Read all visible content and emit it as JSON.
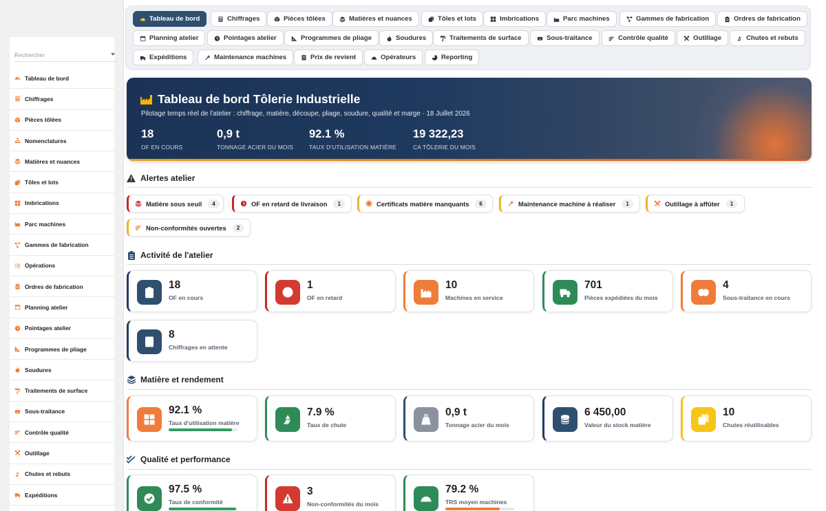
{
  "sidebar": {
    "search_placeholder": "Rechercher",
    "items": [
      {
        "label": "Tableau de bord",
        "icon": "gauge-icon"
      },
      {
        "label": "Chiffrages",
        "icon": "calculator-icon"
      },
      {
        "label": "Pièces tôlées",
        "icon": "cube-icon"
      },
      {
        "label": "Nomenclatures",
        "icon": "sitemap-icon"
      },
      {
        "label": "Matières et nuances",
        "icon": "layers-icon"
      },
      {
        "label": "Tôles et lots",
        "icon": "copy-icon"
      },
      {
        "label": "Imbrications",
        "icon": "grid-icon"
      },
      {
        "label": "Parc machines",
        "icon": "industry-icon"
      },
      {
        "label": "Gammes de fabrication",
        "icon": "project-diagram-icon"
      },
      {
        "label": "Opérations",
        "icon": "list-icon"
      },
      {
        "label": "Ordres de fabrication",
        "icon": "clipboard-icon"
      },
      {
        "label": "Planning atelier",
        "icon": "calendar-icon"
      },
      {
        "label": "Pointages atelier",
        "icon": "clock-icon"
      },
      {
        "label": "Programmes de pliage",
        "icon": "ruler-icon"
      },
      {
        "label": "Soudures",
        "icon": "fire-icon"
      },
      {
        "label": "Traitements de surface",
        "icon": "paint-roller-icon"
      },
      {
        "label": "Sous-traitance",
        "icon": "handshake-icon"
      },
      {
        "label": "Contrôle qualité",
        "icon": "check-double-icon"
      },
      {
        "label": "Outillage",
        "icon": "tools-icon"
      },
      {
        "label": "Chutes et rebuts",
        "icon": "recycle-icon"
      },
      {
        "label": "Expéditions",
        "icon": "truck-icon"
      }
    ]
  },
  "tabs": [
    {
      "label": "Tableau de bord",
      "icon": "gauge-icon",
      "active": true
    },
    {
      "label": "Chiffrages",
      "icon": "calculator-icon"
    },
    {
      "label": "Pièces tôlées",
      "icon": "cube-icon"
    },
    {
      "label": "Matières et nuances",
      "icon": "layers-icon"
    },
    {
      "label": "Tôles et lots",
      "icon": "copy-icon"
    },
    {
      "label": "Imbrications",
      "icon": "grid-icon"
    },
    {
      "label": "Parc machines",
      "icon": "industry-icon"
    },
    {
      "label": "Gammes de fabrication",
      "icon": "project-diagram-icon"
    },
    {
      "label": "Ordres de fabrication",
      "icon": "clipboard-icon"
    },
    {
      "label": "Planning atelier",
      "icon": "calendar-icon"
    },
    {
      "label": "Pointages atelier",
      "icon": "clock-icon"
    },
    {
      "label": "Programmes de pliage",
      "icon": "ruler-icon"
    },
    {
      "label": "Soudures",
      "icon": "fire-icon"
    },
    {
      "label": "Traitements de surface",
      "icon": "paint-roller-icon"
    },
    {
      "label": "Sous-traitance",
      "icon": "handshake-icon"
    },
    {
      "label": "Contrôle qualité",
      "icon": "check-double-icon"
    },
    {
      "label": "Outillage",
      "icon": "tools-icon"
    },
    {
      "label": "Chutes et rebuts",
      "icon": "recycle-icon"
    },
    {
      "label": "Expéditions",
      "icon": "truck-icon"
    },
    {
      "label": "Maintenance machines",
      "icon": "wrench-icon"
    },
    {
      "label": "Prix de revient",
      "icon": "receipt-icon"
    },
    {
      "label": "Opérateurs",
      "icon": "hard-hat-icon"
    },
    {
      "label": "Reporting",
      "icon": "pie-chart-icon"
    }
  ],
  "hero": {
    "title": "Tableau de bord Tôlerie Industrielle",
    "subtitle": "Pilotage temps réel de l'atelier : chiffrage, matière, découpe, pliage, soudure, qualité et marge · 18 Juillet 2026",
    "kpis": [
      {
        "value": "18",
        "label": "OF EN COURS"
      },
      {
        "value": "0,9 t",
        "label": "TONNAGE ACIER DU MOIS"
      },
      {
        "value": "92.1 %",
        "label": "TAUX D'UTILISATION MATIÈRE"
      },
      {
        "value": "19 322,23",
        "label": "CA TÔLERIE DU MOIS"
      }
    ]
  },
  "alerts": {
    "title": "Alertes atelier",
    "items": [
      {
        "label": "Matière sous seuil",
        "count": "4",
        "color": "#c62828",
        "icon": "layers-icon"
      },
      {
        "label": "OF en retard de livraison",
        "count": "1",
        "color": "#c62828",
        "icon": "clock-icon"
      },
      {
        "label": "Certificats matière manquants",
        "count": "6",
        "color": "#f0b429",
        "icon": "certificate-icon"
      },
      {
        "label": "Maintenance machine à réaliser",
        "count": "1",
        "color": "#f0b429",
        "icon": "wrench-icon"
      },
      {
        "label": "Outillage à affûter",
        "count": "1",
        "color": "#f0b429",
        "icon": "tools-icon"
      },
      {
        "label": "Non-conformités ouvertes",
        "count": "2",
        "color": "#f0b429",
        "icon": "check-double-icon"
      }
    ]
  },
  "activity": {
    "title": "Activité de l'atelier",
    "cards": [
      {
        "value": "18",
        "label": "OF en cours",
        "color": "#2f4f6f",
        "border": "#1f3a5f",
        "icon": "clipboard-list-icon"
      },
      {
        "value": "1",
        "label": "OF en retard",
        "color": "#d33a32",
        "border": "#c62828",
        "icon": "clock-icon"
      },
      {
        "value": "10",
        "label": "Machines en service",
        "color": "#f07c3a",
        "border": "#f07c3a",
        "icon": "industry-icon"
      },
      {
        "value": "701",
        "label": "Pièces expédiées du mois",
        "color": "#2e8b57",
        "border": "#2e8b57",
        "icon": "truck-icon"
      },
      {
        "value": "4",
        "label": "Sous-traitance en cours",
        "color": "#f07c3a",
        "border": "#f07c3a",
        "icon": "handshake-icon"
      },
      {
        "value": "8",
        "label": "Chiffrages en attente",
        "color": "#2f4f6f",
        "border": "#1f3a5f",
        "icon": "calculator-icon"
      }
    ]
  },
  "material": {
    "title": "Matière et rendement",
    "cards": [
      {
        "value": "92.1 %",
        "label": "Taux d'utilisation matière",
        "color": "#f07c3a",
        "border": "#f07c3a",
        "icon": "grid-icon",
        "progress": 92.1,
        "bar": "#2e9e63"
      },
      {
        "value": "7.9 %",
        "label": "Taux de chute",
        "color": "#2e8b57",
        "border": "#2e8b57",
        "icon": "recycle-icon"
      },
      {
        "value": "0,9 t",
        "label": "Tonnage acier du mois",
        "color": "#8a929e",
        "border": "#2f4f6f",
        "icon": "weight-icon"
      },
      {
        "value": "6 450,00",
        "label": "Valeur du stock matière",
        "color": "#2f4f6f",
        "border": "#1f3a5f",
        "icon": "coins-icon"
      },
      {
        "value": "10",
        "label": "Chutes réutilisables",
        "color": "#f5c518",
        "border": "#f5c518",
        "icon": "copy-icon"
      }
    ]
  },
  "quality": {
    "title": "Qualité et performance",
    "cards": [
      {
        "value": "97.5 %",
        "label": "Taux de conformité",
        "color": "#2e8b57",
        "border": "#2e8b57",
        "icon": "check-circle-icon",
        "progress": 97.5,
        "bar": "#2e9e63"
      },
      {
        "value": "3",
        "label": "Non-conformités du mois",
        "color": "#d33a32",
        "border": "#c62828",
        "icon": "warning-icon"
      },
      {
        "value": "79.2 %",
        "label": "TRS moyen machines",
        "color": "#2e8b57",
        "border": "#2e8b57",
        "icon": "gauge-icon",
        "progress": 79.2,
        "bar": "#f07c3a"
      }
    ]
  }
}
